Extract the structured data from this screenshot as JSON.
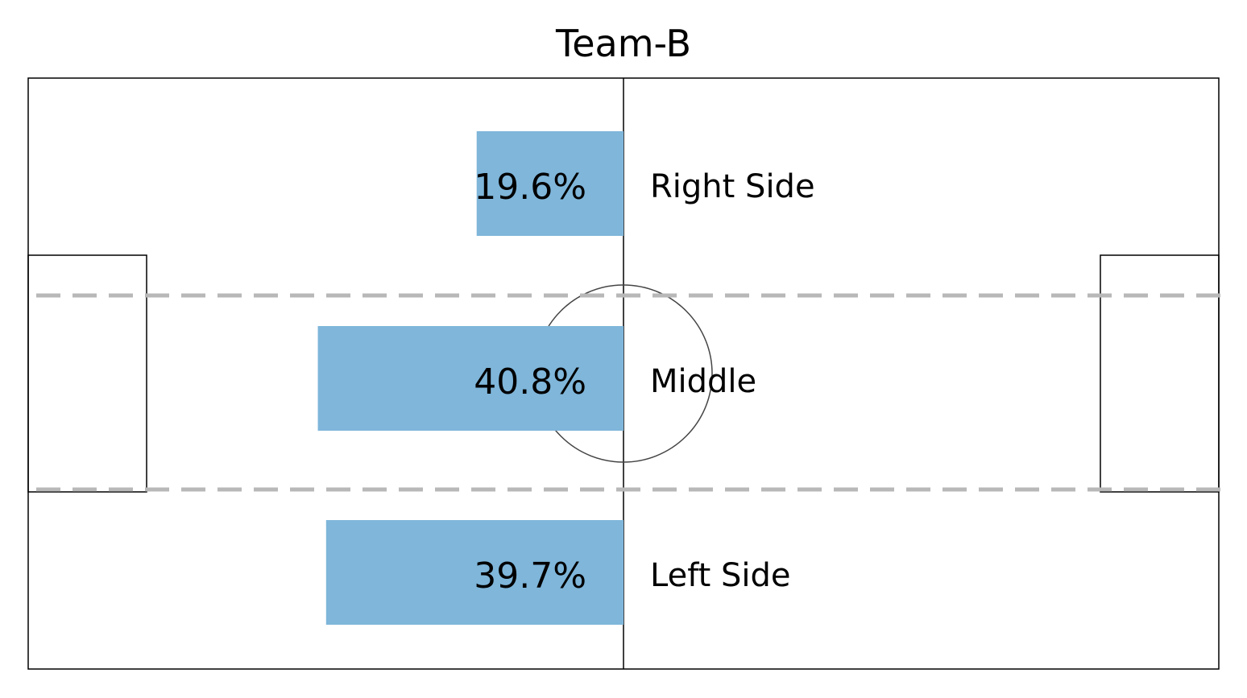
{
  "chart_data": {
    "type": "bar",
    "orientation": "horizontal",
    "title": "Team-B",
    "categories": [
      "Right Side",
      "Middle",
      "Left Side"
    ],
    "values": [
      19.6,
      40.8,
      39.7
    ],
    "value_labels": [
      "19.6%",
      "40.8%",
      "39.7%"
    ],
    "unit": "%",
    "xlim": [
      0,
      100
    ],
    "bar_color": "#7fb6da",
    "zone_line_color": "#b8b8b8",
    "pitch_line_color": "#000000",
    "background": "soccer-pitch",
    "grid": false,
    "legend": "none"
  }
}
